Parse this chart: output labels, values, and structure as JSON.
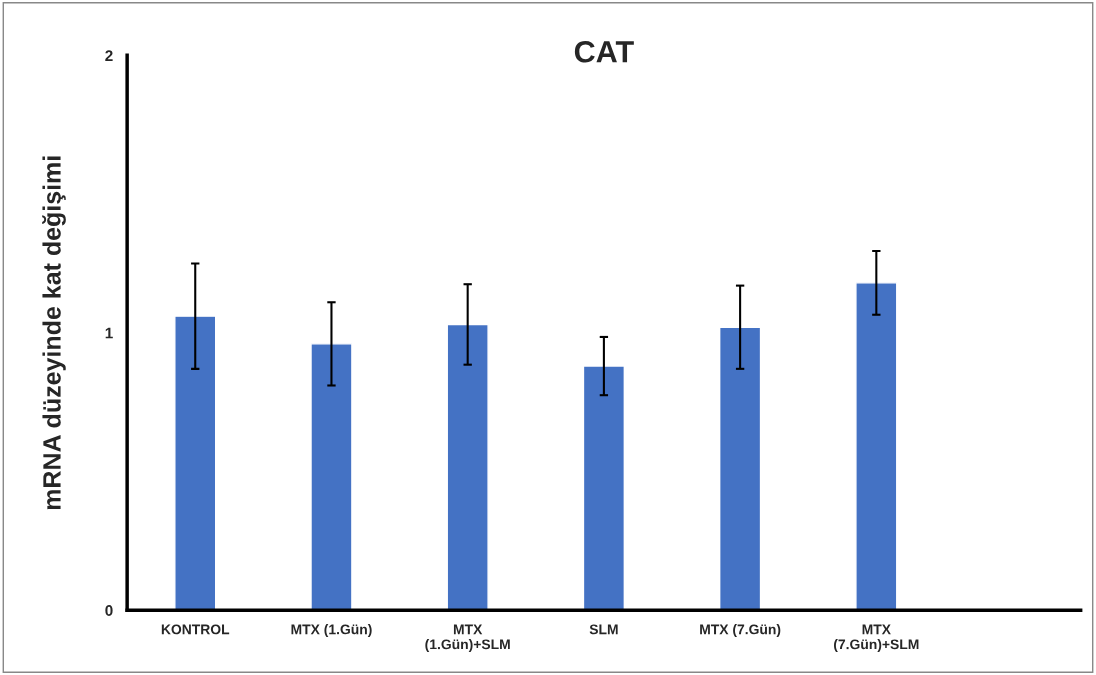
{
  "chart_data": {
    "type": "bar",
    "title": "CAT",
    "ylabel": "mRNA düzeyinde kat değişimi",
    "categories": [
      "KONTROL",
      "MTX (1.Gün)",
      "MTX\n(1.Gün)+SLM",
      "SLM",
      "MTX (7.Gün)",
      "MTX\n(7.Gün)+SLM"
    ],
    "values": [
      1.06,
      0.96,
      1.03,
      0.88,
      1.02,
      1.18
    ],
    "errors": [
      0.19,
      0.15,
      0.145,
      0.105,
      0.15,
      0.115
    ],
    "color": "#4472c4",
    "ylim": [
      0,
      2
    ],
    "yticks": [
      0,
      1,
      2
    ],
    "grid": false,
    "legend": false
  }
}
